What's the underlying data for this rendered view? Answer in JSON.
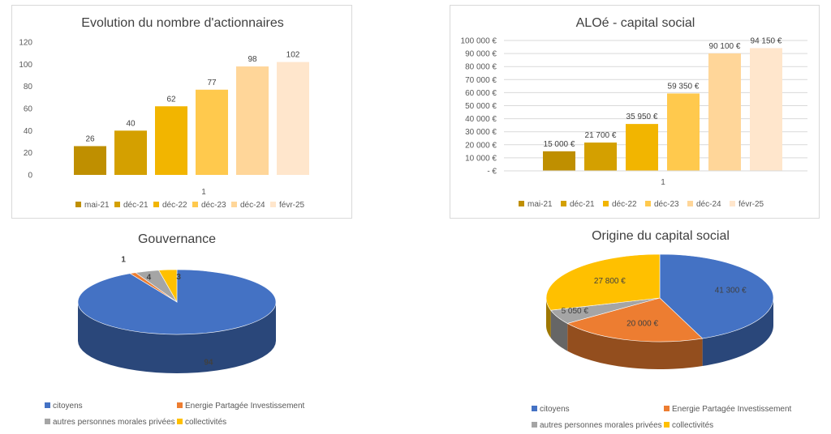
{
  "chart_data": [
    {
      "type": "bar",
      "title": "Evolution du nombre d'actionnaires",
      "x_tick": "1",
      "ylim": [
        0,
        120
      ],
      "y_ticks": [
        "0",
        "20",
        "40",
        "60",
        "80",
        "100",
        "120"
      ],
      "legend_position": "bottom",
      "gridlines": false,
      "series": [
        {
          "name": "mai-21",
          "value": 26,
          "label": "26",
          "color": "#bf8f00"
        },
        {
          "name": "déc-21",
          "value": 40,
          "label": "40",
          "color": "#d4a000"
        },
        {
          "name": "déc-22",
          "value": 62,
          "label": "62",
          "color": "#f2b500"
        },
        {
          "name": "déc-23",
          "value": 77,
          "label": "77",
          "color": "#ffc94d"
        },
        {
          "name": "déc-24",
          "value": 98,
          "label": "98",
          "color": "#ffd699"
        },
        {
          "name": "févr-25",
          "value": 102,
          "label": "102",
          "color": "#ffe6cc"
        }
      ]
    },
    {
      "type": "bar",
      "title": "ALOé - capital social",
      "x_tick": "1",
      "ylim": [
        0,
        100000
      ],
      "y_ticks": [
        "-   €",
        "10 000 €",
        "20 000 €",
        "30 000 €",
        "40 000 €",
        "50 000 €",
        "60 000 €",
        "70 000 €",
        "80 000 €",
        "90 000 €",
        "100 000 €"
      ],
      "legend_position": "bottom",
      "gridlines": true,
      "series": [
        {
          "name": "mai-21",
          "value": 15000,
          "label": "15 000 €",
          "color": "#bf8f00"
        },
        {
          "name": "déc-21",
          "value": 21700,
          "label": "21 700 €",
          "color": "#d4a000"
        },
        {
          "name": "déc-22",
          "value": 35950,
          "label": "35 950 €",
          "color": "#f2b500"
        },
        {
          "name": "déc-23",
          "value": 59350,
          "label": "59 350 €",
          "color": "#ffc94d"
        },
        {
          "name": "déc-24",
          "value": 90100,
          "label": "90 100 €",
          "color": "#ffd699"
        },
        {
          "name": "févr-25",
          "value": 94150,
          "label": "94 150 €",
          "color": "#ffe6cc"
        }
      ]
    },
    {
      "type": "pie",
      "style": "3d",
      "title": "Gouvernance",
      "legend_position": "bottom",
      "slices": [
        {
          "name": "citoyens",
          "value": 94,
          "label": "94",
          "color": "#4472c4"
        },
        {
          "name": "Energie Partagée Investissement",
          "value": 1,
          "label": "1",
          "color": "#ed7d31"
        },
        {
          "name": "autres personnes morales privées",
          "value": 4,
          "label": "4",
          "color": "#a5a5a5"
        },
        {
          "name": "collectivités",
          "value": 3,
          "label": "3",
          "color": "#ffc000"
        }
      ]
    },
    {
      "type": "pie",
      "style": "3d",
      "title": "Origine du capital social",
      "legend_position": "bottom",
      "slices": [
        {
          "name": "citoyens",
          "value": 41300,
          "label": "41 300 €",
          "color": "#4472c4"
        },
        {
          "name": "Energie Partagée Investissement",
          "value": 20000,
          "label": "20 000 €",
          "color": "#ed7d31"
        },
        {
          "name": "autres personnes morales privées",
          "value": 5050,
          "label": "5 050 €",
          "color": "#a5a5a5"
        },
        {
          "name": "collectivités",
          "value": 27800,
          "label": "27 800 €",
          "color": "#ffc000"
        }
      ]
    }
  ]
}
